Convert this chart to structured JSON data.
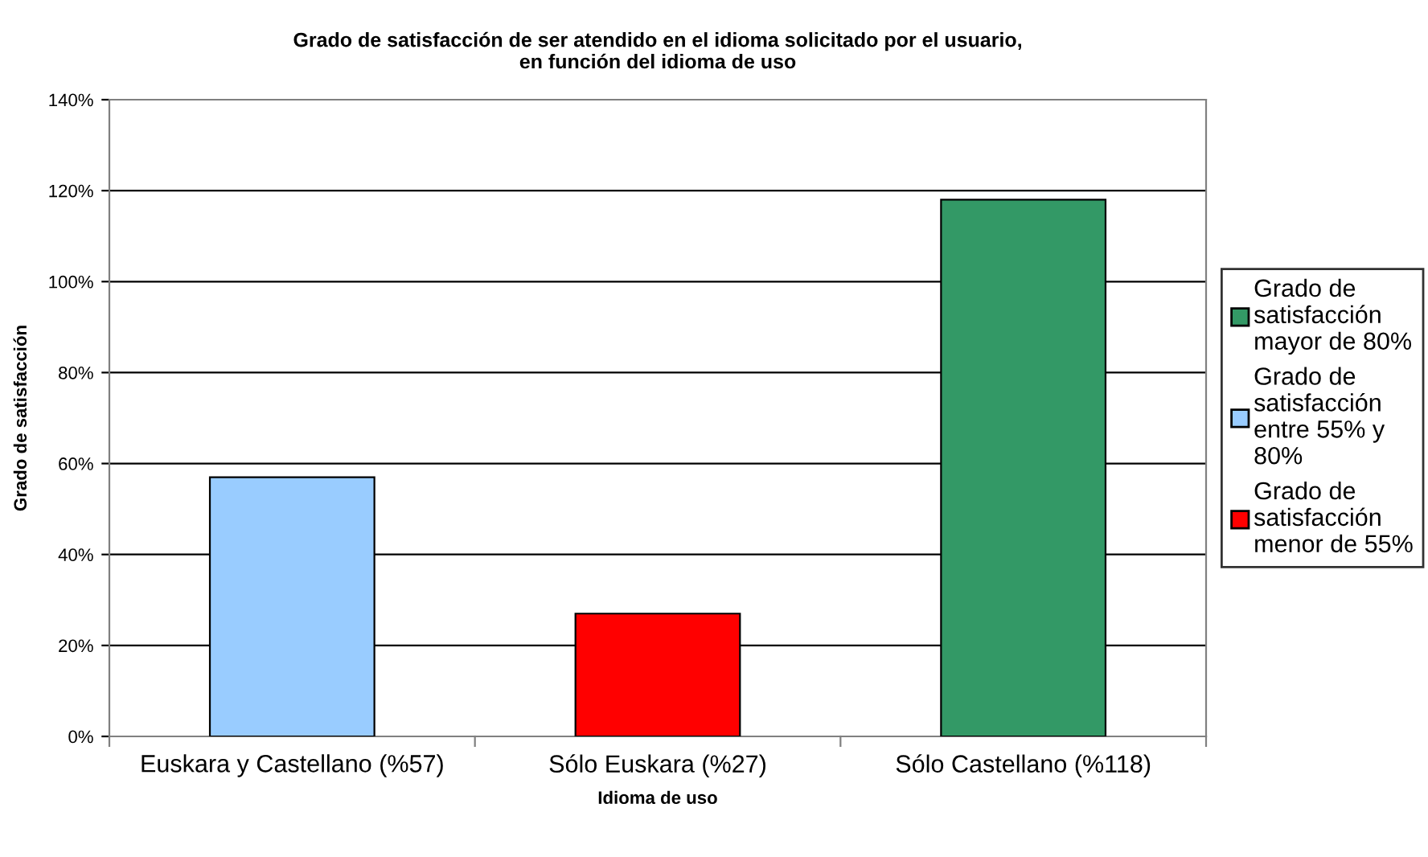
{
  "chart_data": {
    "type": "bar",
    "title": "Grado de satisfacción de ser atendido en el idioma solicitado por el usuario,\nen función del idioma de uso",
    "xlabel": "Idioma de uso",
    "ylabel": "Grado de satisfacción",
    "categories": [
      "Euskara y Castellano (%57)",
      "Sólo Euskara (%27)",
      "Sólo Castellano (%118)"
    ],
    "series": [
      {
        "name": "Grado de satisfacción mayor de 80%",
        "color": "#339966",
        "values": [
          null,
          null,
          118
        ]
      },
      {
        "name": "Grado de satisfacción entre 55% y 80%",
        "color": "#99ccff",
        "values": [
          57,
          null,
          null
        ]
      },
      {
        "name": "Grado de satisfacción menor de 55%",
        "color": "#ff0000",
        "values": [
          null,
          27,
          null
        ]
      }
    ],
    "stacked": true,
    "ylim": [
      0,
      140
    ],
    "yticks": [
      {
        "value": 0,
        "label": "0%"
      },
      {
        "value": 20,
        "label": "20%"
      },
      {
        "value": 40,
        "label": "40%"
      },
      {
        "value": 60,
        "label": "60%"
      },
      {
        "value": 80,
        "label": "80%"
      },
      {
        "value": 100,
        "label": "100%"
      },
      {
        "value": 120,
        "label": "120%"
      },
      {
        "value": 140,
        "label": "140%"
      }
    ],
    "grid": "y",
    "legend": "right"
  }
}
